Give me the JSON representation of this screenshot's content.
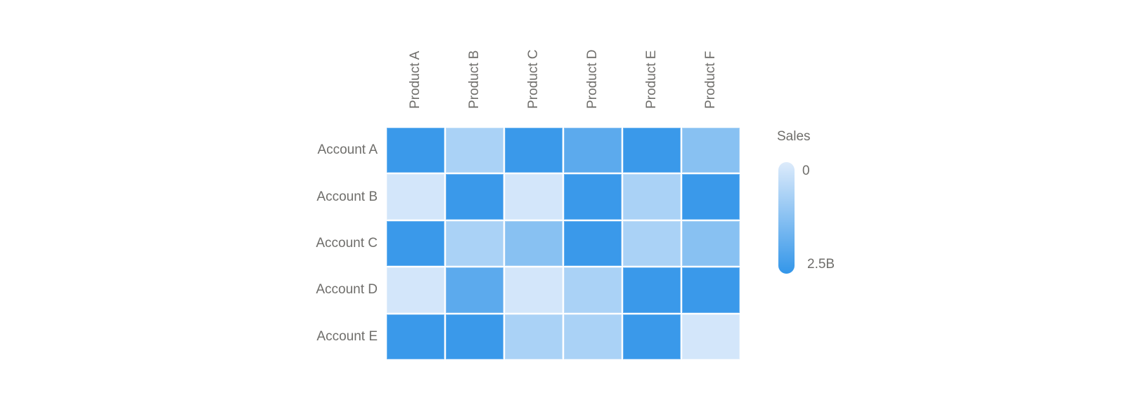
{
  "page": {
    "background": "#FFFFFF",
    "text_color": "#6F6E6B"
  },
  "chart_data": {
    "type": "heatmap",
    "title": "",
    "x_categories": [
      "Product A",
      "Product B",
      "Product C",
      "Product D",
      "Product E",
      "Product F"
    ],
    "y_categories": [
      "Account A",
      "Account B",
      "Account C",
      "Account D",
      "Account E"
    ],
    "values_billions": [
      [
        2.4,
        0.75,
        2.4,
        1.9,
        2.4,
        1.25
      ],
      [
        0.15,
        2.4,
        0.15,
        2.4,
        0.75,
        2.4
      ],
      [
        2.4,
        0.75,
        1.25,
        2.4,
        0.75,
        1.25
      ],
      [
        0.15,
        1.9,
        0.15,
        0.75,
        2.4,
        2.4
      ],
      [
        2.4,
        2.4,
        0.75,
        0.75,
        2.4,
        0.15
      ]
    ],
    "value_unit": "B",
    "legend": {
      "title": "Sales",
      "min_label": "0",
      "max_label": "2.5B",
      "min": 0,
      "max": 2.5,
      "position": "right"
    },
    "colors": {
      "ramp_low": "#DDEBFB",
      "ramp_high": "#3396E9",
      "label_text": "#6F6E6B"
    },
    "layout": {
      "x_labels_rotated": true,
      "grid_lines": false,
      "cell_gap_color": "#FFFFFF"
    }
  }
}
